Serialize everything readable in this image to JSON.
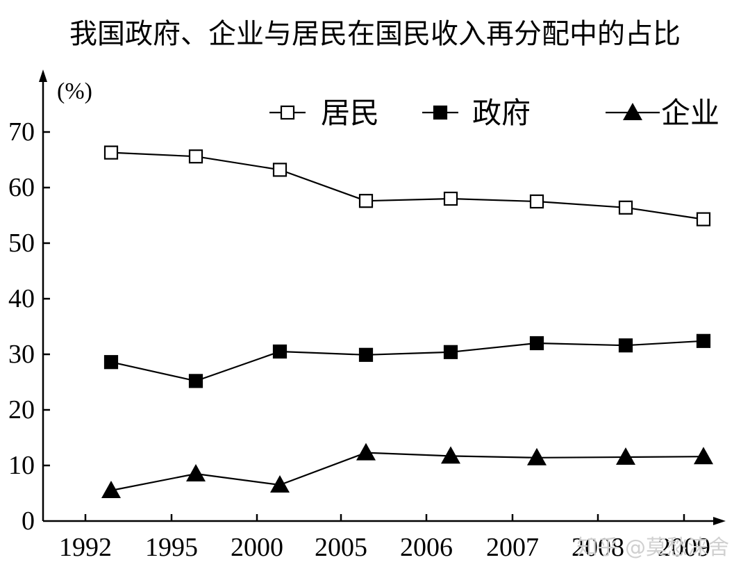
{
  "chart_data": {
    "type": "line",
    "title": "我国政府、企业与居民在国民收入再分配中的占比",
    "ylabel": "(%)",
    "xlabel": "",
    "categories": [
      "1992",
      "1995",
      "2000",
      "2005",
      "2006",
      "2007",
      "2008",
      "2009"
    ],
    "ylim": [
      0,
      70
    ],
    "yticks": [
      0,
      10,
      20,
      30,
      40,
      50,
      60,
      70
    ],
    "grid": false,
    "legend_position": "top-right",
    "series": [
      {
        "name": "居民",
        "marker": "square-open",
        "values": [
          66.3,
          65.6,
          63.2,
          57.6,
          58.0,
          57.5,
          56.4,
          54.3
        ]
      },
      {
        "name": "政府",
        "marker": "square-filled",
        "values": [
          28.6,
          25.2,
          30.5,
          29.9,
          30.4,
          32.0,
          31.6,
          32.4
        ]
      },
      {
        "name": "企业",
        "marker": "triangle-filled",
        "values": [
          5.5,
          8.5,
          6.5,
          12.3,
          11.7,
          11.4,
          11.5,
          11.6
        ]
      }
    ]
  },
  "watermark": "知乎 @莫愁涞舍",
  "colors": {
    "ink": "#000000",
    "background": "#ffffff",
    "watermark": "#d0d0d0"
  }
}
